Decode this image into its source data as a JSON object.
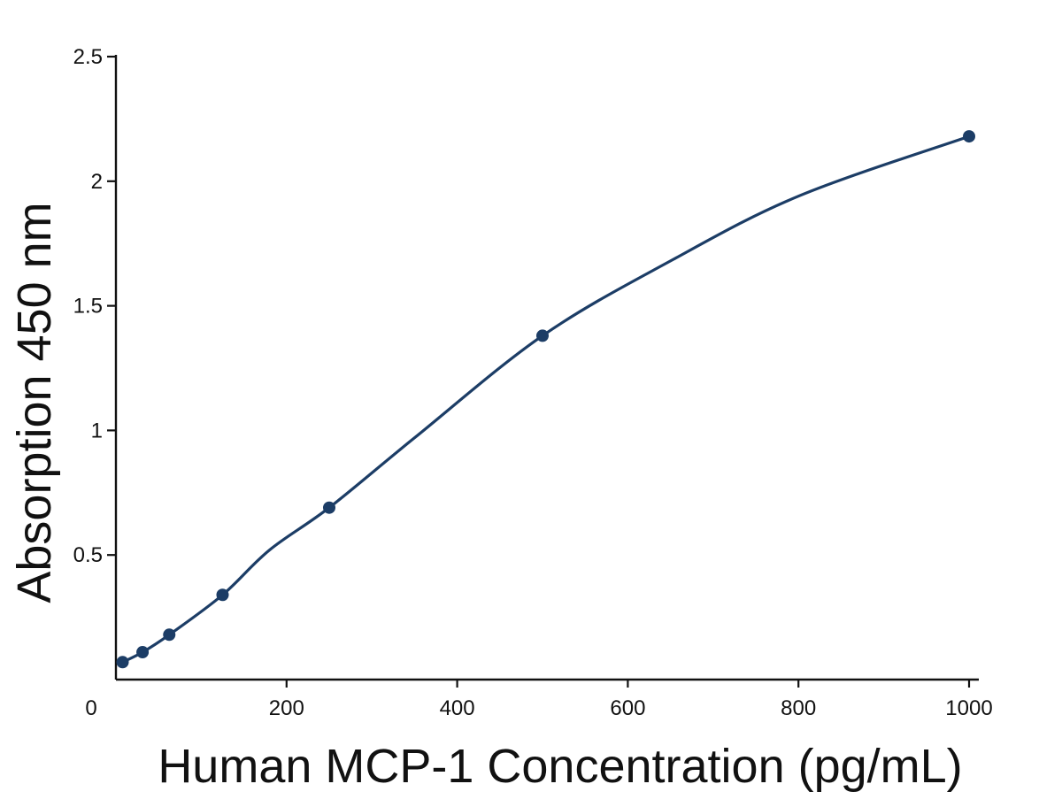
{
  "chart_data": {
    "type": "line",
    "xlabel": "Human MCP-1 Concentration (pg/mL)",
    "ylabel": "Absorption 450 nm",
    "xlim": [
      0,
      1000
    ],
    "ylim": [
      0,
      2.5
    ],
    "x_ticks": [
      0,
      200,
      400,
      600,
      800,
      1000
    ],
    "x_tick_labels": [
      "0",
      "200",
      "400",
      "600",
      "800",
      "1000"
    ],
    "y_ticks": [
      0.5,
      1,
      1.5,
      2,
      2.5
    ],
    "y_tick_labels": [
      "0.5",
      "1",
      "1.5",
      "2",
      "2.5"
    ],
    "grid": false,
    "legend": "none",
    "series": [
      {
        "x": [
          7.8,
          31.2,
          62.5,
          125,
          250,
          500,
          1000
        ],
        "y": [
          0.07,
          0.11,
          0.18,
          0.34,
          0.69,
          1.38,
          2.18
        ],
        "marker": "circle",
        "color": "#1c3d66"
      }
    ],
    "fit_curve": {
      "x": [
        7.8,
        31.2,
        62.5,
        125,
        180,
        250,
        350,
        500,
        650,
        800,
        1000
      ],
      "y": [
        0.07,
        0.11,
        0.18,
        0.34,
        0.52,
        0.69,
        0.97,
        1.38,
        1.68,
        1.94,
        2.18
      ],
      "color": "#1c3d66"
    }
  }
}
